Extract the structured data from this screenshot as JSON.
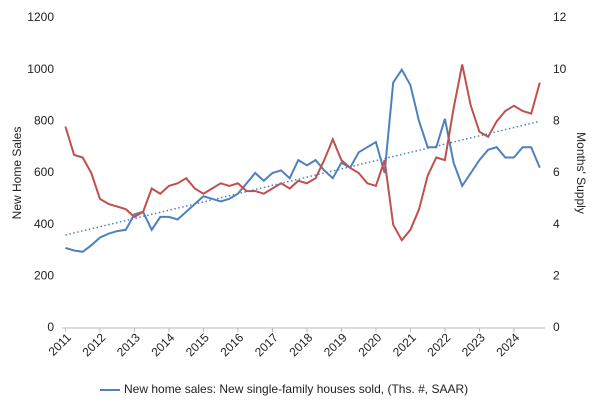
{
  "chart_data": {
    "type": "line",
    "y_label": "New Home Sales",
    "y2_label": "Months' Supply",
    "x": [
      2011,
      2011.25,
      2011.5,
      2011.75,
      2012,
      2012.25,
      2012.5,
      2012.75,
      2013,
      2013.25,
      2013.5,
      2013.75,
      2014,
      2014.25,
      2014.5,
      2014.75,
      2015,
      2015.25,
      2015.5,
      2015.75,
      2016,
      2016.25,
      2016.5,
      2016.75,
      2017,
      2017.25,
      2017.5,
      2017.75,
      2018,
      2018.25,
      2018.5,
      2018.75,
      2019,
      2019.25,
      2019.5,
      2019.75,
      2020,
      2020.25,
      2020.5,
      2020.75,
      2021,
      2021.25,
      2021.5,
      2021.75,
      2022,
      2022.25,
      2022.5,
      2022.75,
      2023,
      2023.25,
      2023.5,
      2023.75,
      2024,
      2024.25,
      2024.5,
      2024.75
    ],
    "series": [
      {
        "name": "New home sales: New single-family houses sold, (Ths. #, SAAR)",
        "color": "#4f81bd",
        "values": [
          310,
          300,
          295,
          320,
          350,
          365,
          375,
          380,
          440,
          450,
          380,
          430,
          430,
          420,
          450,
          480,
          510,
          500,
          490,
          500,
          520,
          560,
          600,
          570,
          600,
          610,
          580,
          650,
          630,
          650,
          610,
          580,
          640,
          620,
          680,
          700,
          720,
          600,
          950,
          1000,
          940,
          800,
          700,
          700,
          810,
          640,
          550,
          600,
          650,
          690,
          700,
          660,
          660,
          700,
          700,
          620
        ]
      },
      {
        "color": "#c0504d",
        "axis": "y2",
        "values": [
          7.8,
          6.7,
          6.6,
          6.0,
          5.0,
          4.8,
          4.7,
          4.6,
          4.3,
          4.5,
          5.4,
          5.2,
          5.5,
          5.6,
          5.8,
          5.4,
          5.2,
          5.4,
          5.6,
          5.5,
          5.6,
          5.3,
          5.3,
          5.2,
          5.4,
          5.6,
          5.4,
          5.7,
          5.6,
          5.8,
          6.5,
          7.3,
          6.5,
          6.2,
          6.0,
          5.6,
          5.5,
          6.5,
          4.0,
          3.4,
          3.8,
          4.6,
          5.9,
          6.6,
          6.5,
          8.5,
          10.2,
          8.6,
          7.6,
          7.4,
          8.0,
          8.4,
          8.6,
          8.4,
          8.3,
          9.5
        ]
      }
    ],
    "trendline": {
      "x": [
        2011,
        2024.75
      ],
      "values": [
        360,
        800
      ],
      "color": "#4f81bd"
    },
    "xlim": [
      2010.9,
      2024.9
    ],
    "xticks": [
      2011,
      2012,
      2013,
      2014,
      2015,
      2016,
      2017,
      2018,
      2019,
      2020,
      2021,
      2022,
      2023,
      2024
    ],
    "ylim": [
      0,
      1200
    ],
    "yticks": [
      0,
      200,
      400,
      600,
      800,
      1000,
      1200
    ],
    "y2lim": [
      0,
      12
    ],
    "y2ticks": [
      0,
      2,
      4,
      6,
      8,
      10,
      12
    ]
  }
}
